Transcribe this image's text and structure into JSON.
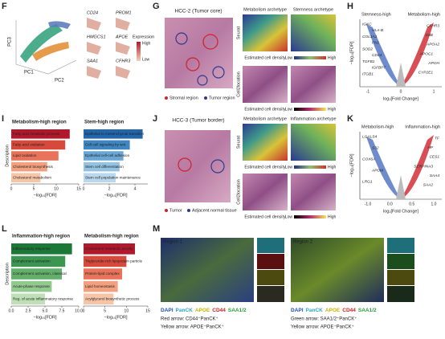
{
  "F": {
    "letter": "F",
    "axes": [
      "PC3",
      "PC1",
      "PC2"
    ],
    "genes": [
      "CD24",
      "PROM1",
      "HMGCS1",
      "APOE",
      "SAA1",
      "CFHR3"
    ],
    "legend_title": "Expression",
    "legend_high": "High",
    "legend_low": "Low"
  },
  "G": {
    "letter": "G",
    "title": "HCC-2 (Tumor core)",
    "legend": [
      "Stromal region",
      "Tumor region"
    ],
    "col_titles": [
      "Metabolism archetype",
      "Stemness archetype"
    ],
    "row_labels": [
      "Seurat",
      "Cell2location"
    ],
    "density": "Estimated cell density",
    "low": "Low",
    "high": "High"
  },
  "H": {
    "letter": "H",
    "left_title": "Stemness-high",
    "right_title": "Metabolism-high",
    "xlabel": "log₂[Fold Change]",
    "ylabel": "−log₁₀[FDR]",
    "xtick_labels": [
      "-1",
      "0",
      "1"
    ],
    "left_genes": [
      "IGKC",
      "HLA-B",
      "COL1A1",
      "FN1",
      "SOD2",
      "CD44",
      "TGFB1",
      "IGFBP7",
      "ITGB1"
    ],
    "right_genes": [
      "CFHR3",
      "C8B",
      "APOA2",
      "APOC1",
      "APOH",
      "CYP2E1"
    ]
  },
  "I": {
    "letter": "I"
  },
  "J": {
    "letter": "J",
    "title": "HCC-3 (Tumor border)",
    "legend": [
      "Tumor",
      "Adjacent normal tissue"
    ],
    "col_titles": [
      "Metabolism archetype",
      "Inflammation archetype"
    ],
    "row_labels": [
      "Seurat",
      "Cell2location"
    ],
    "density": "Estimated cell density",
    "low": "Low",
    "high": "High"
  },
  "K": {
    "letter": "K",
    "left_title": "Metabolism-high",
    "right_title": "Inflammation-high",
    "xlabel": "log₂[Fold Change]",
    "ylabel": "−log₁₀[FDR]",
    "xtick_labels": [
      "-1.0",
      "0.0",
      "0.5",
      "1.0"
    ],
    "left_genes": [
      "LGALS4",
      "S32",
      "COX6A",
      "APOM",
      "LRG1"
    ],
    "right_genes": [
      "TF",
      "HP",
      "CES1",
      "SERPINA3",
      "SAA4",
      "SAA2"
    ]
  },
  "L": {
    "letter": "L"
  },
  "M": {
    "letter": "M",
    "regions": [
      "Region 1",
      "Region 2"
    ],
    "stains": [
      "DAPI",
      "PanCK",
      "APOE",
      "CD44",
      "SAA1/2"
    ],
    "stain_colors": [
      "#1f4fbf",
      "#2aa7c9",
      "#c9b400",
      "#d11f1f",
      "#2b9e3a"
    ],
    "notes1": [
      "Red arrow: CD44⁺PanCK⁺",
      "Yellow arrow: APOE⁺PanCK⁺"
    ],
    "notes2": [
      "Green arrow: SAA1/2⁺PanCK⁺",
      "Yellow arrow: APOE⁺PanCK⁺"
    ]
  },
  "chart_data": [
    {
      "type": "bar",
      "title": "Metabolism-high region",
      "ylabel": "Description",
      "xlabel": "−log₁₀[FDR]",
      "categories": [
        "Fatty acid metabolic process",
        "Fatty acid oxidation",
        "Lipid oxidation",
        "Cholesterol biosynthesis",
        "Cholesterol metabolism"
      ],
      "values": [
        13,
        12,
        10.5,
        8,
        6.5
      ],
      "colors": [
        "#b2182b",
        "#d6493b",
        "#e8735a",
        "#f3a07f",
        "#f8c4a8"
      ],
      "xlim": [
        0,
        15
      ],
      "xticks": [
        0,
        5,
        10,
        15
      ]
    },
    {
      "type": "bar",
      "title": "Stem-high region",
      "xlabel": "−log₁₀[FDR]",
      "categories": [
        "Epithelial to mesenchymal transition",
        "Cell-cell signaling by wnt",
        "Epithelial cell-cell adhesion",
        "Stem cell differentiation",
        "Stem cell population maintenance"
      ],
      "values": [
        4.6,
        3.6,
        3.1,
        2.8,
        2.5
      ],
      "colors": [
        "#2166ac",
        "#3f86c0",
        "#6aa6d3",
        "#93c2e2",
        "#b9d8ee"
      ],
      "xlim": [
        0,
        5
      ],
      "xticks": [
        0,
        2,
        4
      ]
    },
    {
      "type": "bar",
      "title": "Inflammation-high region",
      "ylabel": "Description",
      "xlabel": "−log₁₀[FDR]",
      "categories": [
        "Inflammatory response",
        "Complement activation",
        "Complement activation, classical",
        "Acute-phase response",
        "Reg. of acute inflammatory response"
      ],
      "values": [
        9,
        8,
        7.5,
        6,
        5
      ],
      "colors": [
        "#1b7837",
        "#3a9651",
        "#63b06d",
        "#92c98f",
        "#bfe0b7"
      ],
      "xlim": [
        0,
        10
      ],
      "xticks": [
        {
          "value": 0,
          "label": "0.0"
        },
        2.5,
        {
          "value": 5,
          "label": "5.0"
        },
        7.5,
        {
          "value": 10,
          "label": "10.0"
        }
      ]
    },
    {
      "type": "bar",
      "title": "Metabolism-high region",
      "xlabel": "−log₁₀[FDR]",
      "categories": [
        "Cholesterol metabolic activity",
        "Triglyceride-rich lipoprotein particle",
        "Protein-lipid complex",
        "Lipid homeostasis",
        "Acylglycerol biosynthetic process"
      ],
      "values": [
        12,
        10,
        9,
        8,
        7
      ],
      "colors": [
        "#b2182b",
        "#d6493b",
        "#e8735a",
        "#f3a07f",
        "#f8c4a8"
      ],
      "xlim": [
        0,
        15
      ],
      "xticks": [
        0,
        5,
        10,
        15
      ]
    }
  ]
}
